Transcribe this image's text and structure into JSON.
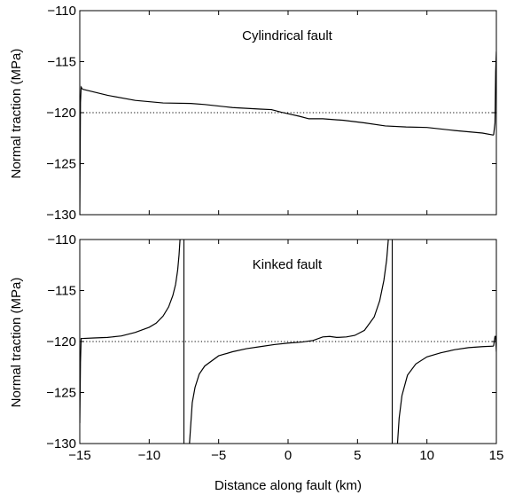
{
  "figure": {
    "shared_xlabel": "Distance along fault (km)"
  },
  "chart_data": [
    {
      "type": "line",
      "title": "Cylindrical fault",
      "xlabel": "",
      "ylabel": "Normal traction (MPa)",
      "xlim": [
        -15,
        15
      ],
      "ylim": [
        -130,
        -110
      ],
      "xticks": [
        -15,
        -10,
        -5,
        0,
        5,
        10,
        15
      ],
      "yticks": [
        -110,
        -115,
        -120,
        -125,
        -130
      ],
      "x_tick_labels_shown": false,
      "y_tick_labels": [
        "−110",
        "−115",
        "−120",
        "−125",
        "−130"
      ],
      "reference_line": {
        "y": -120,
        "style": "dotted"
      },
      "series": [
        {
          "segments": [
            [
              [
                -15,
                -130
              ],
              [
                -14.95,
                -119
              ],
              [
                -14.9,
                -117.5
              ],
              [
                -14.8,
                -117.7
              ]
            ],
            [
              [
                -14.8,
                -117.7
              ],
              [
                -13,
                -118.3
              ],
              [
                -11,
                -118.8
              ],
              [
                -9,
                -119.05
              ],
              [
                -7,
                -119.1
              ],
              [
                -6,
                -119.2
              ],
              [
                -4,
                -119.5
              ],
              [
                -2,
                -119.65
              ],
              [
                -1.2,
                -119.7
              ],
              [
                -0.5,
                -119.95
              ],
              [
                0,
                -120.1
              ],
              [
                0.8,
                -120.35
              ],
              [
                1.5,
                -120.6
              ],
              [
                2.5,
                -120.6
              ],
              [
                4,
                -120.75
              ],
              [
                5.5,
                -121.0
              ],
              [
                7,
                -121.3
              ],
              [
                8.5,
                -121.4
              ],
              [
                10,
                -121.45
              ],
              [
                12,
                -121.75
              ],
              [
                14,
                -122.0
              ],
              [
                14.8,
                -122.2
              ]
            ],
            [
              [
                14.8,
                -122.2
              ],
              [
                14.9,
                -121
              ],
              [
                14.95,
                -116
              ],
              [
                15,
                -114
              ]
            ]
          ]
        }
      ]
    },
    {
      "type": "line",
      "title": "Kinked fault",
      "xlabel": "Distance along fault (km)",
      "ylabel": "Normal traction (MPa)",
      "xlim": [
        -15,
        15
      ],
      "ylim": [
        -130,
        -110
      ],
      "xticks": [
        -15,
        -10,
        -5,
        0,
        5,
        10,
        15
      ],
      "yticks": [
        -110,
        -115,
        -120,
        -125,
        -130
      ],
      "x_tick_labels": [
        "−15",
        "−10",
        "−5",
        "0",
        "5",
        "10",
        "15"
      ],
      "y_tick_labels": [
        "−110",
        "−115",
        "−120",
        "−125",
        "−130"
      ],
      "reference_line": {
        "y": -120,
        "style": "dotted"
      },
      "vertical_lines": [
        -7.5,
        7.5
      ],
      "series": [
        {
          "segments": [
            [
              [
                -15,
                -128
              ],
              [
                -14.95,
                -122
              ],
              [
                -14.9,
                -119.7
              ],
              [
                -14.8,
                -119.7
              ]
            ],
            [
              [
                -14.8,
                -119.7
              ],
              [
                -14,
                -119.65
              ],
              [
                -13,
                -119.6
              ],
              [
                -12,
                -119.45
              ],
              [
                -11,
                -119.1
              ],
              [
                -10,
                -118.6
              ],
              [
                -9.5,
                -118.2
              ],
              [
                -9,
                -117.5
              ],
              [
                -8.6,
                -116.6
              ],
              [
                -8.3,
                -115.5
              ],
              [
                -8.1,
                -114.4
              ],
              [
                -7.95,
                -113
              ],
              [
                -7.85,
                -111.5
              ],
              [
                -7.78,
                -110
              ]
            ],
            [
              [
                -7.1,
                -130
              ],
              [
                -7.0,
                -128
              ],
              [
                -6.9,
                -126
              ],
              [
                -6.7,
                -124.5
              ],
              [
                -6.4,
                -123.2
              ],
              [
                -6,
                -122.4
              ],
              [
                -5,
                -121.4
              ],
              [
                -4,
                -121.0
              ],
              [
                -3,
                -120.7
              ],
              [
                -2,
                -120.5
              ],
              [
                -1,
                -120.3
              ],
              [
                0,
                -120.15
              ],
              [
                1,
                -120.05
              ],
              [
                1.8,
                -119.9
              ],
              [
                2.5,
                -119.55
              ],
              [
                3.0,
                -119.5
              ],
              [
                3.5,
                -119.6
              ],
              [
                4.2,
                -119.55
              ],
              [
                4.8,
                -119.4
              ],
              [
                5.5,
                -118.9
              ],
              [
                6.2,
                -117.6
              ],
              [
                6.6,
                -116.0
              ],
              [
                6.9,
                -114.0
              ],
              [
                7.1,
                -112.0
              ],
              [
                7.22,
                -110
              ]
            ],
            [
              [
                7.88,
                -130
              ],
              [
                8.0,
                -127.5
              ],
              [
                8.2,
                -125.3
              ],
              [
                8.6,
                -123.3
              ],
              [
                9.2,
                -122.2
              ],
              [
                10,
                -121.5
              ],
              [
                11,
                -121.1
              ],
              [
                12,
                -120.8
              ],
              [
                13,
                -120.6
              ],
              [
                14,
                -120.5
              ],
              [
                14.8,
                -120.45
              ]
            ],
            [
              [
                14.8,
                -120.45
              ],
              [
                14.9,
                -119.5
              ],
              [
                14.95,
                -119.5
              ],
              [
                15,
                -121
              ]
            ]
          ]
        }
      ]
    }
  ]
}
